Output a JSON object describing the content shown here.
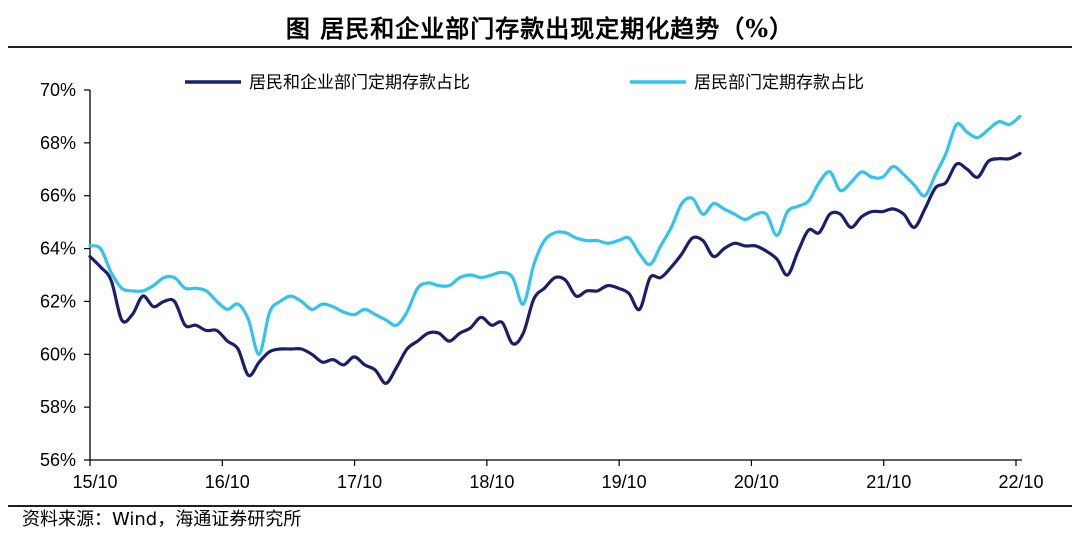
{
  "title": "图  居民和企业部门存款出现定期化趋势（%）",
  "source": "资料来源：Wind，海通证券研究所",
  "chart_data": {
    "type": "line",
    "x_tick_labels": [
      "15/10",
      "16/10",
      "17/10",
      "18/10",
      "19/10",
      "20/10",
      "21/10",
      "22/10"
    ],
    "y_tick_labels": [
      "56%",
      "58%",
      "60%",
      "62%",
      "64%",
      "66%",
      "68%",
      "70%"
    ],
    "ylim": [
      56,
      70
    ],
    "x_range": [
      0,
      85
    ],
    "grid": false,
    "legend_position": "top",
    "series": [
      {
        "name": "居民和企业部门定期存款占比",
        "color": "#1b1f6b",
        "values": [
          63.7,
          63.3,
          62.8,
          61.3,
          61.5,
          62.2,
          61.8,
          62.0,
          62.0,
          61.1,
          61.1,
          60.9,
          60.9,
          60.5,
          60.2,
          59.2,
          59.7,
          60.1,
          60.2,
          60.2,
          60.2,
          60.0,
          59.7,
          59.8,
          59.6,
          59.9,
          59.6,
          59.4,
          58.9,
          59.5,
          60.2,
          60.5,
          60.8,
          60.8,
          60.5,
          60.8,
          61.0,
          61.4,
          61.1,
          61.2,
          60.4,
          60.8,
          62.1,
          62.5,
          62.9,
          62.8,
          62.2,
          62.4,
          62.4,
          62.6,
          62.5,
          62.3,
          61.7,
          62.9,
          62.9,
          63.3,
          63.8,
          64.4,
          64.3,
          63.7,
          64.0,
          64.2,
          64.1,
          64.1,
          63.9,
          63.6,
          63.0,
          63.9,
          64.7,
          64.6,
          65.3,
          65.3,
          64.8,
          65.2,
          65.4,
          65.4,
          65.5,
          65.3,
          64.8,
          65.5,
          66.3,
          66.5,
          67.2,
          67.0,
          66.7,
          67.3,
          67.4,
          67.4,
          67.6
        ]
      },
      {
        "name": "居民部门定期存款占比",
        "color": "#33c3ee",
        "values": [
          64.1,
          64.0,
          63.1,
          62.5,
          62.4,
          62.4,
          62.6,
          62.9,
          62.9,
          62.5,
          62.5,
          62.4,
          62.0,
          61.7,
          61.9,
          61.3,
          60.0,
          61.6,
          62.0,
          62.2,
          62.0,
          61.7,
          61.9,
          61.8,
          61.6,
          61.5,
          61.7,
          61.5,
          61.3,
          61.1,
          61.6,
          62.5,
          62.7,
          62.6,
          62.6,
          62.9,
          63.0,
          62.9,
          63.0,
          63.1,
          62.9,
          61.9,
          63.4,
          64.3,
          64.6,
          64.6,
          64.4,
          64.3,
          64.3,
          64.2,
          64.3,
          64.4,
          63.8,
          63.4,
          64.1,
          64.8,
          65.7,
          65.9,
          65.3,
          65.7,
          65.5,
          65.3,
          65.1,
          65.3,
          65.3,
          64.5,
          65.4,
          65.6,
          65.8,
          66.5,
          66.9,
          66.2,
          66.5,
          66.9,
          66.7,
          66.7,
          67.1,
          66.8,
          66.4,
          66.0,
          66.8,
          67.6,
          68.7,
          68.4,
          68.2,
          68.5,
          68.8,
          68.7,
          69.0
        ]
      }
    ]
  }
}
